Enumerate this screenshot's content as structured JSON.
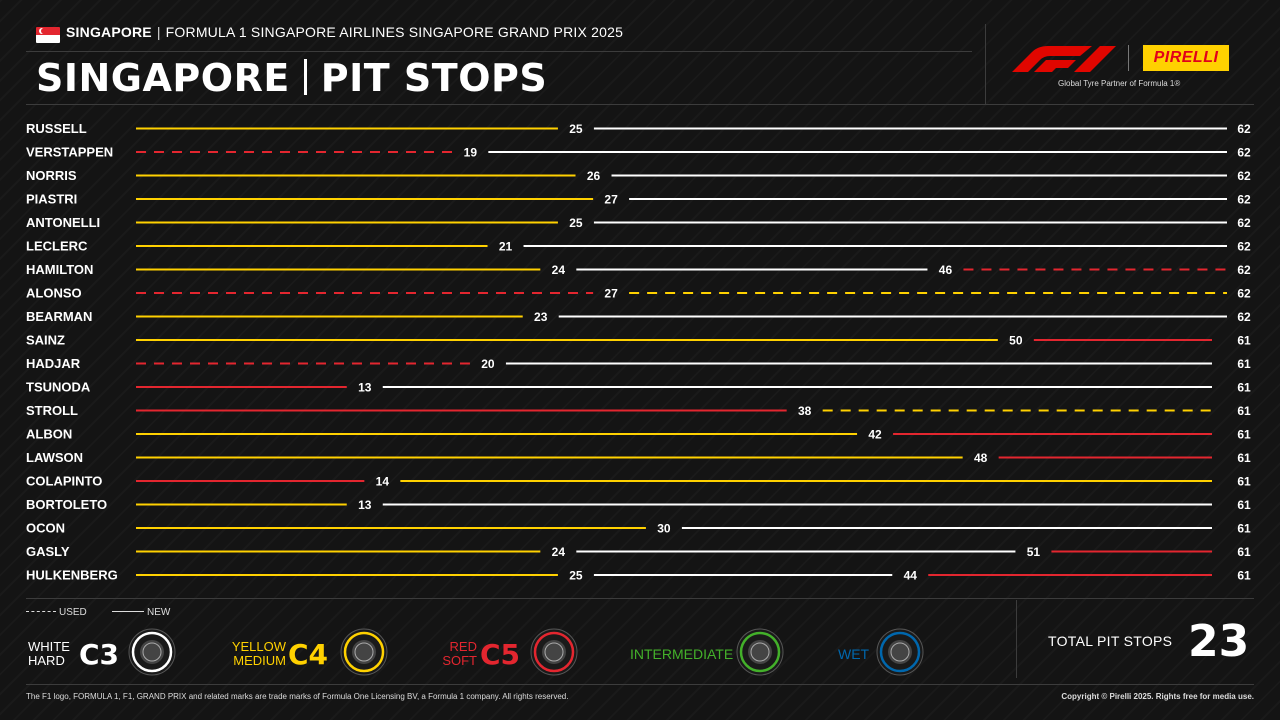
{
  "header": {
    "location": "SINGAPORE",
    "event": "FORMULA 1 SINGAPORE AIRLINES SINGAPORE GRAND PRIX 2025",
    "title_left": "SINGAPORE",
    "title_right": "PIT STOPS",
    "pirelli": "PIRELLI",
    "partner": "Global Tyre Partner of Formula 1®"
  },
  "colors": {
    "hard": "#ffffff",
    "medium": "#ffd100",
    "soft": "#e3262f",
    "intermediate": "#43b02a",
    "wet": "#0067ad"
  },
  "chart_data": {
    "type": "bar",
    "x_unit": "lap",
    "xlim": [
      0,
      62
    ],
    "rows": [
      {
        "driver": "RUSSELL",
        "stints": [
          {
            "compound": "medium",
            "used": false,
            "end": 25
          },
          {
            "compound": "hard",
            "used": false,
            "end": 62
          }
        ]
      },
      {
        "driver": "VERSTAPPEN",
        "stints": [
          {
            "compound": "soft",
            "used": true,
            "end": 19
          },
          {
            "compound": "hard",
            "used": false,
            "end": 62
          }
        ]
      },
      {
        "driver": "NORRIS",
        "stints": [
          {
            "compound": "medium",
            "used": false,
            "end": 26
          },
          {
            "compound": "hard",
            "used": false,
            "end": 62
          }
        ]
      },
      {
        "driver": "PIASTRI",
        "stints": [
          {
            "compound": "medium",
            "used": false,
            "end": 27
          },
          {
            "compound": "hard",
            "used": false,
            "end": 62
          }
        ]
      },
      {
        "driver": "ANTONELLI",
        "stints": [
          {
            "compound": "medium",
            "used": false,
            "end": 25
          },
          {
            "compound": "hard",
            "used": false,
            "end": 62
          }
        ]
      },
      {
        "driver": "LECLERC",
        "stints": [
          {
            "compound": "medium",
            "used": false,
            "end": 21
          },
          {
            "compound": "hard",
            "used": false,
            "end": 62
          }
        ]
      },
      {
        "driver": "HAMILTON",
        "stints": [
          {
            "compound": "medium",
            "used": false,
            "end": 24
          },
          {
            "compound": "hard",
            "used": false,
            "end": 46
          },
          {
            "compound": "soft",
            "used": true,
            "end": 62
          }
        ]
      },
      {
        "driver": "ALONSO",
        "stints": [
          {
            "compound": "soft",
            "used": true,
            "end": 27
          },
          {
            "compound": "medium",
            "used": true,
            "end": 62
          }
        ]
      },
      {
        "driver": "BEARMAN",
        "stints": [
          {
            "compound": "medium",
            "used": false,
            "end": 23
          },
          {
            "compound": "hard",
            "used": false,
            "end": 62
          }
        ]
      },
      {
        "driver": "SAINZ",
        "stints": [
          {
            "compound": "medium",
            "used": false,
            "end": 50
          },
          {
            "compound": "soft",
            "used": false,
            "end": 61
          }
        ]
      },
      {
        "driver": "HADJAR",
        "stints": [
          {
            "compound": "soft",
            "used": true,
            "end": 20
          },
          {
            "compound": "hard",
            "used": false,
            "end": 61
          }
        ]
      },
      {
        "driver": "TSUNODA",
        "stints": [
          {
            "compound": "soft",
            "used": false,
            "end": 13
          },
          {
            "compound": "hard",
            "used": false,
            "end": 61
          }
        ]
      },
      {
        "driver": "STROLL",
        "stints": [
          {
            "compound": "soft",
            "used": false,
            "end": 38
          },
          {
            "compound": "medium",
            "used": true,
            "end": 61
          }
        ]
      },
      {
        "driver": "ALBON",
        "stints": [
          {
            "compound": "medium",
            "used": false,
            "end": 42
          },
          {
            "compound": "soft",
            "used": false,
            "end": 61
          }
        ]
      },
      {
        "driver": "LAWSON",
        "stints": [
          {
            "compound": "medium",
            "used": false,
            "end": 48
          },
          {
            "compound": "soft",
            "used": false,
            "end": 61
          }
        ]
      },
      {
        "driver": "COLAPINTO",
        "stints": [
          {
            "compound": "soft",
            "used": false,
            "end": 14
          },
          {
            "compound": "medium",
            "used": false,
            "end": 61
          }
        ]
      },
      {
        "driver": "BORTOLETO",
        "stints": [
          {
            "compound": "medium",
            "used": false,
            "end": 13
          },
          {
            "compound": "hard",
            "used": false,
            "end": 61
          }
        ]
      },
      {
        "driver": "OCON",
        "stints": [
          {
            "compound": "medium",
            "used": false,
            "end": 30
          },
          {
            "compound": "hard",
            "used": false,
            "end": 61
          }
        ]
      },
      {
        "driver": "GASLY",
        "stints": [
          {
            "compound": "medium",
            "used": false,
            "end": 24
          },
          {
            "compound": "hard",
            "used": false,
            "end": 51
          },
          {
            "compound": "soft",
            "used": false,
            "end": 61
          }
        ]
      },
      {
        "driver": "HULKENBERG",
        "stints": [
          {
            "compound": "medium",
            "used": false,
            "end": 25
          },
          {
            "compound": "hard",
            "used": false,
            "end": 44
          },
          {
            "compound": "soft",
            "used": false,
            "end": 61
          }
        ]
      }
    ]
  },
  "legend": {
    "used": "USED",
    "new": "NEW",
    "hard": {
      "line1": "WHITE",
      "line2": "HARD",
      "code": "C3"
    },
    "medium": {
      "line1": "YELLOW",
      "line2": "MEDIUM",
      "code": "C4"
    },
    "soft": {
      "line1": "RED",
      "line2": "SOFT",
      "code": "C5"
    },
    "intermediate": {
      "label": "INTERMEDIATE"
    },
    "wet": {
      "label": "WET"
    }
  },
  "total": {
    "label": "TOTAL PIT STOPS",
    "value": "23"
  },
  "footer": {
    "disclaimer": "The F1 logo, FORMULA 1, F1, GRAND PRIX and related marks are trade marks of Formula One Licensing BV, a Formula 1 company. All rights reserved.",
    "copyright": "Copyright © Pirelli 2025. Rights free for media use."
  }
}
